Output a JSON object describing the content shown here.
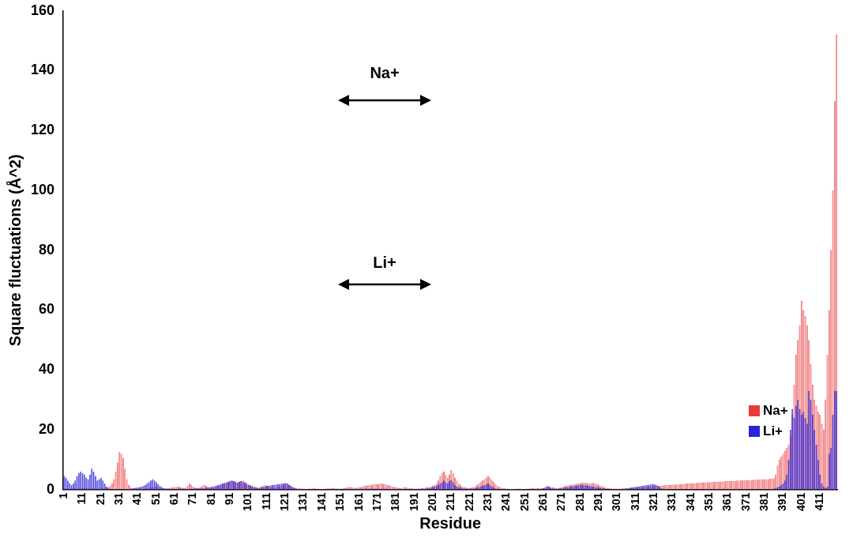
{
  "chart_data": {
    "type": "bar",
    "x_label": "Residue",
    "y_label": "Square fluctuations (Å^2)",
    "annotations": [
      "Na+",
      "Li+"
    ],
    "categories": [
      "1",
      null,
      null,
      null,
      null,
      null,
      null,
      null,
      null,
      null,
      "11",
      null,
      null,
      null,
      null,
      null,
      null,
      null,
      null,
      null,
      "21",
      null,
      null,
      null,
      null,
      null,
      null,
      null,
      null,
      null,
      "31",
      null,
      null,
      null,
      null,
      null,
      null,
      null,
      null,
      null,
      "41",
      null,
      null,
      null,
      null,
      null,
      null,
      null,
      null,
      null,
      "51",
      null,
      null,
      null,
      null,
      null,
      null,
      null,
      null,
      null,
      "61",
      null,
      null,
      null,
      null,
      null,
      null,
      null,
      null,
      null,
      "71",
      null,
      null,
      null,
      null,
      null,
      null,
      null,
      null,
      null,
      "81",
      null,
      null,
      null,
      null,
      null,
      null,
      null,
      null,
      null,
      "91",
      null,
      null,
      null,
      null,
      null,
      null,
      null,
      null,
      null,
      "101",
      null,
      null,
      null,
      null,
      null,
      null,
      null,
      null,
      null,
      "111",
      null,
      null,
      null,
      null,
      null,
      null,
      null,
      null,
      null,
      "121",
      null,
      null,
      null,
      null,
      null,
      null,
      null,
      null,
      null,
      "131",
      null,
      null,
      null,
      null,
      null,
      null,
      null,
      null,
      null,
      "141",
      null,
      null,
      null,
      null,
      null,
      null,
      null,
      null,
      null,
      "151",
      null,
      null,
      null,
      null,
      null,
      null,
      null,
      null,
      null,
      "161",
      null,
      null,
      null,
      null,
      null,
      null,
      null,
      null,
      null,
      "171",
      null,
      null,
      null,
      null,
      null,
      null,
      null,
      null,
      null,
      "181",
      null,
      null,
      null,
      null,
      null,
      null,
      null,
      null,
      null,
      "191",
      null,
      null,
      null,
      null,
      null,
      null,
      null,
      null,
      null,
      "201",
      null,
      null,
      null,
      null,
      null,
      null,
      null,
      null,
      null,
      "211",
      null,
      null,
      null,
      null,
      null,
      null,
      null,
      null,
      null,
      "221",
      null,
      null,
      null,
      null,
      null,
      null,
      null,
      null,
      null,
      "231",
      null,
      null,
      null,
      null,
      null,
      null,
      null,
      null,
      null,
      "241",
      null,
      null,
      null,
      null,
      null,
      null,
      null,
      null,
      null,
      "251",
      null,
      null,
      null,
      null,
      null,
      null,
      null,
      null,
      null,
      "261",
      null,
      null,
      null,
      null,
      null,
      null,
      null,
      null,
      null,
      "271",
      null,
      null,
      null,
      null,
      null,
      null,
      null,
      null,
      null,
      "281",
      null,
      null,
      null,
      null,
      null,
      null,
      null,
      null,
      null,
      "291",
      null,
      null,
      null,
      null,
      null,
      null,
      null,
      null,
      null,
      "301",
      null,
      null,
      null,
      null,
      null,
      null,
      null,
      null,
      null,
      "311",
      null,
      null,
      null,
      null,
      null,
      null,
      null,
      null,
      null,
      "321",
      null,
      null,
      null,
      null,
      null,
      null,
      null,
      null,
      null,
      "331",
      null,
      null,
      null,
      null,
      null,
      null,
      null,
      null,
      null,
      "341",
      null,
      null,
      null,
      null,
      null,
      null,
      null,
      null,
      null,
      "351",
      null,
      null,
      null,
      null,
      null,
      null,
      null,
      null,
      null,
      "361",
      null,
      null,
      null,
      null,
      null,
      null,
      null,
      null,
      null,
      "371",
      null,
      null,
      null,
      null,
      null,
      null,
      null,
      null,
      null,
      "381",
      null,
      null,
      null,
      null,
      null,
      null,
      null,
      null,
      null,
      "391",
      null,
      null,
      null,
      null,
      null,
      null,
      null,
      null,
      null,
      "401",
      null,
      null,
      null,
      null,
      null,
      null,
      null,
      null,
      null,
      "411",
      null,
      null,
      null,
      null,
      null,
      null,
      null,
      null,
      null
    ],
    "series": [
      {
        "name": "Na+",
        "color": "#e83a3a",
        "values": [
          0.5,
          0.4,
          0.3,
          0.3,
          0.4,
          0.5,
          0.4,
          0.3,
          0.3,
          0.4,
          0.5,
          0.6,
          0.5,
          0.4,
          0.3,
          0.4,
          0.5,
          0.4,
          0.3,
          0.3,
          0.3,
          0.4,
          0.5,
          0.6,
          0.8,
          1.2,
          2.0,
          3.5,
          6.0,
          9.0,
          12.5,
          12.0,
          10.5,
          7.0,
          3.5,
          1.5,
          0.8,
          0.5,
          0.4,
          0.3,
          0.3,
          0.3,
          0.2,
          0.2,
          0.3,
          0.4,
          0.5,
          0.6,
          0.8,
          1.0,
          0.9,
          0.7,
          0.5,
          0.4,
          0.3,
          0.3,
          0.4,
          0.5,
          0.6,
          0.7,
          0.8,
          0.9,
          1.0,
          0.8,
          0.6,
          0.5,
          0.6,
          1.2,
          2.0,
          1.5,
          1.0,
          0.6,
          0.5,
          0.6,
          0.8,
          1.2,
          1.5,
          1.2,
          0.8,
          0.6,
          0.5,
          0.6,
          0.8,
          1.0,
          1.2,
          1.5,
          1.8,
          2.0,
          2.2,
          2.5,
          2.8,
          3.0,
          2.8,
          2.5,
          2.2,
          2.5,
          2.8,
          3.0,
          2.6,
          2.2,
          1.8,
          1.5,
          1.2,
          1.0,
          0.8,
          0.7,
          0.8,
          1.0,
          1.2,
          1.5,
          1.2,
          1.0,
          0.8,
          0.6,
          0.5,
          0.6,
          0.8,
          1.0,
          1.2,
          1.5,
          1.8,
          2.0,
          1.6,
          1.2,
          0.8,
          0.6,
          0.5,
          0.4,
          0.4,
          0.3,
          0.3,
          0.2,
          0.2,
          0.3,
          0.3,
          0.4,
          0.4,
          0.3,
          0.3,
          0.2,
          0.2,
          0.3,
          0.3,
          0.4,
          0.4,
          0.5,
          0.5,
          0.4,
          0.4,
          0.3,
          0.3,
          0.4,
          0.5,
          0.6,
          0.7,
          0.8,
          0.7,
          0.6,
          0.5,
          0.6,
          0.7,
          0.8,
          1.0,
          1.2,
          1.3,
          1.4,
          1.5,
          1.6,
          1.7,
          1.8,
          1.8,
          1.9,
          2.0,
          1.9,
          1.8,
          1.6,
          1.4,
          1.2,
          1.0,
          0.8,
          0.7,
          0.6,
          0.5,
          0.5,
          0.6,
          0.7,
          0.6,
          0.5,
          0.4,
          0.4,
          0.3,
          0.3,
          0.4,
          0.4,
          0.5,
          0.5,
          0.6,
          0.7,
          0.8,
          1.0,
          1.2,
          1.5,
          2.0,
          3.0,
          4.5,
          5.5,
          6.0,
          5.0,
          4.0,
          5.0,
          6.5,
          5.5,
          4.0,
          3.0,
          2.0,
          1.5,
          1.0,
          0.8,
          0.6,
          0.5,
          0.5,
          0.6,
          0.8,
          1.0,
          1.5,
          2.0,
          2.5,
          3.0,
          3.5,
          4.0,
          4.5,
          4.0,
          3.2,
          2.5,
          1.8,
          1.2,
          0.8,
          0.6,
          0.5,
          0.4,
          0.3,
          0.3,
          0.2,
          0.2,
          0.2,
          0.3,
          0.3,
          0.3,
          0.2,
          0.2,
          0.2,
          0.3,
          0.3,
          0.4,
          0.5,
          0.5,
          0.4,
          0.4,
          0.3,
          0.3,
          0.4,
          0.5,
          0.6,
          0.7,
          0.8,
          0.7,
          0.6,
          0.5,
          0.5,
          0.6,
          0.8,
          1.0,
          1.2,
          1.4,
          1.5,
          1.6,
          1.7,
          1.8,
          1.9,
          2.0,
          2.1,
          2.2,
          2.3,
          2.2,
          2.1,
          2.0,
          2.1,
          2.2,
          2.0,
          1.8,
          1.5,
          1.2,
          1.0,
          0.8,
          0.6,
          0.5,
          0.4,
          0.4,
          0.3,
          0.3,
          0.3,
          0.3,
          0.3,
          0.4,
          0.4,
          0.4,
          0.5,
          0.5,
          0.5,
          0.6,
          0.6,
          0.6,
          0.7,
          0.7,
          0.8,
          0.8,
          0.9,
          0.9,
          1.0,
          1.0,
          1.1,
          1.2,
          1.2,
          1.3,
          1.3,
          1.4,
          1.4,
          1.5,
          1.5,
          1.5,
          1.6,
          1.6,
          1.7,
          1.7,
          1.8,
          1.8,
          1.9,
          1.9,
          2.0,
          2.0,
          2.0,
          2.1,
          2.1,
          2.2,
          2.2,
          2.3,
          2.3,
          2.3,
          2.4,
          2.4,
          2.5,
          2.5,
          2.5,
          2.6,
          2.6,
          2.6,
          2.7,
          2.7,
          2.7,
          2.8,
          2.8,
          2.8,
          2.9,
          2.9,
          2.9,
          3.0,
          3.0,
          3.0,
          3.1,
          3.1,
          3.1,
          3.2,
          3.2,
          3.2,
          3.3,
          3.3,
          3.3,
          3.4,
          3.4,
          3.4,
          3.5,
          3.5,
          3.5,
          3.6,
          3.6,
          3.8,
          5.0,
          8.0,
          10.0,
          11.0,
          12.0,
          13.0,
          14.0,
          15.0,
          18.0,
          25.0,
          35.0,
          45.0,
          50.0,
          55.0,
          63.0,
          60.0,
          58.0,
          55.0,
          50.0,
          42.0,
          35.0,
          30.0,
          28.0,
          26.0,
          25.0,
          22.0,
          20.0,
          30.0,
          45.0,
          60.0,
          80.0,
          100.0,
          130.0,
          152.0
        ]
      },
      {
        "name": "Li+",
        "color": "#2a22d8",
        "values": [
          4.5,
          4.0,
          3.0,
          2.0,
          1.5,
          2.0,
          3.0,
          4.5,
          5.5,
          6.0,
          5.5,
          5.0,
          4.0,
          3.5,
          5.0,
          7.0,
          6.0,
          4.5,
          3.0,
          3.5,
          4.0,
          3.0,
          2.0,
          1.0,
          0.5,
          0.3,
          0.2,
          0.2,
          0.1,
          0.1,
          0.1,
          0.1,
          0.1,
          0.1,
          0.2,
          0.2,
          0.3,
          0.4,
          0.5,
          0.6,
          0.7,
          0.8,
          1.0,
          1.2,
          1.5,
          2.0,
          2.5,
          3.0,
          3.5,
          3.0,
          2.5,
          1.8,
          1.2,
          0.8,
          0.5,
          0.4,
          0.3,
          0.3,
          0.2,
          0.2,
          0.2,
          0.3,
          0.3,
          0.4,
          0.3,
          0.3,
          0.2,
          0.2,
          0.3,
          0.3,
          0.4,
          0.4,
          0.5,
          0.5,
          0.4,
          0.4,
          0.5,
          0.6,
          0.7,
          0.8,
          0.9,
          1.0,
          1.2,
          1.4,
          1.6,
          1.8,
          2.0,
          2.2,
          2.4,
          2.6,
          2.8,
          3.0,
          2.8,
          2.6,
          2.4,
          2.6,
          2.8,
          2.5,
          2.2,
          1.8,
          1.5,
          1.2,
          1.0,
          0.8,
          0.6,
          0.5,
          0.5,
          0.6,
          0.8,
          1.0,
          1.2,
          1.3,
          1.4,
          1.5,
          1.6,
          1.7,
          1.8,
          1.9,
          2.0,
          2.1,
          2.2,
          2.0,
          1.6,
          1.2,
          0.8,
          0.5,
          0.3,
          0.2,
          0.2,
          0.1,
          0.1,
          0.1,
          0.1,
          0.1,
          0.1,
          0.1,
          0.1,
          0.1,
          0.1,
          0.1,
          0.1,
          0.1,
          0.1,
          0.1,
          0.1,
          0.1,
          0.1,
          0.1,
          0.1,
          0.1,
          0.1,
          0.1,
          0.1,
          0.1,
          0.2,
          0.2,
          0.2,
          0.2,
          0.2,
          0.2,
          0.2,
          0.2,
          0.3,
          0.3,
          0.3,
          0.3,
          0.3,
          0.3,
          0.3,
          0.3,
          0.3,
          0.3,
          0.3,
          0.3,
          0.3,
          0.3,
          0.2,
          0.2,
          0.2,
          0.2,
          0.2,
          0.2,
          0.2,
          0.2,
          0.2,
          0.2,
          0.2,
          0.2,
          0.2,
          0.2,
          0.2,
          0.2,
          0.2,
          0.2,
          0.2,
          0.3,
          0.3,
          0.4,
          0.5,
          0.6,
          0.8,
          1.0,
          1.2,
          1.5,
          2.0,
          2.5,
          3.0,
          2.5,
          2.0,
          2.8,
          3.2,
          2.5,
          1.5,
          1.0,
          0.8,
          0.6,
          0.5,
          0.4,
          0.3,
          0.3,
          0.3,
          0.3,
          0.4,
          0.5,
          0.6,
          0.8,
          1.0,
          1.2,
          1.5,
          1.8,
          2.0,
          1.5,
          1.0,
          0.6,
          0.4,
          0.3,
          0.2,
          0.2,
          0.2,
          0.2,
          0.1,
          0.1,
          0.1,
          0.1,
          0.1,
          0.1,
          0.1,
          0.1,
          0.1,
          0.1,
          0.1,
          0.1,
          0.1,
          0.1,
          0.2,
          0.2,
          0.2,
          0.3,
          0.3,
          0.4,
          0.5,
          0.8,
          1.2,
          1.0,
          0.6,
          0.4,
          0.3,
          0.3,
          0.3,
          0.4,
          0.5,
          0.6,
          0.7,
          0.8,
          0.9,
          1.0,
          1.1,
          1.2,
          1.3,
          1.4,
          1.5,
          1.6,
          1.5,
          1.4,
          1.3,
          1.2,
          1.1,
          1.0,
          0.9,
          0.8,
          0.7,
          0.6,
          0.5,
          0.4,
          0.3,
          0.3,
          0.2,
          0.2,
          0.2,
          0.2,
          0.2,
          0.2,
          0.2,
          0.3,
          0.3,
          0.4,
          0.5,
          0.6,
          0.7,
          0.8,
          0.9,
          1.0,
          1.1,
          1.2,
          1.3,
          1.4,
          1.5,
          1.6,
          1.7,
          1.8,
          1.8,
          1.6,
          1.2,
          0.8,
          0.5,
          0.3,
          0.2,
          0.2,
          0.1,
          0.1,
          0.1,
          0.1,
          0.1,
          0.1,
          0.1,
          0.1,
          0.1,
          0.1,
          0.1,
          0.1,
          0.1,
          0.1,
          0.1,
          0.1,
          0.1,
          0.1,
          0.1,
          0.1,
          0.1,
          0.1,
          0.1,
          0.1,
          0.1,
          0.1,
          0.1,
          0.1,
          0.1,
          0.1,
          0.1,
          0.1,
          0.1,
          0.1,
          0.1,
          0.1,
          0.1,
          0.1,
          0.1,
          0.1,
          0.1,
          0.1,
          0.1,
          0.1,
          0.1,
          0.1,
          0.1,
          0.1,
          0.1,
          0.1,
          0.1,
          0.1,
          0.1,
          0.1,
          0.1,
          0.1,
          0.2,
          0.3,
          0.5,
          0.8,
          1.0,
          1.5,
          2.0,
          3.0,
          5.0,
          10.0,
          20.0,
          27.0,
          24.0,
          28.0,
          30.0,
          27.0,
          25.0,
          26.0,
          24.0,
          22.0,
          33.0,
          30.0,
          25.0,
          20.0,
          15.0,
          10.0,
          5.0,
          2.0,
          1.0,
          0.5,
          1.0,
          12.0,
          14.0,
          25.0,
          33.0,
          33.0
        ]
      }
    ],
    "ylim": [
      0,
      160
    ],
    "yticks": [
      0,
      20,
      40,
      60,
      80,
      100,
      120,
      140,
      160
    ],
    "grid": false,
    "legend": "right"
  }
}
